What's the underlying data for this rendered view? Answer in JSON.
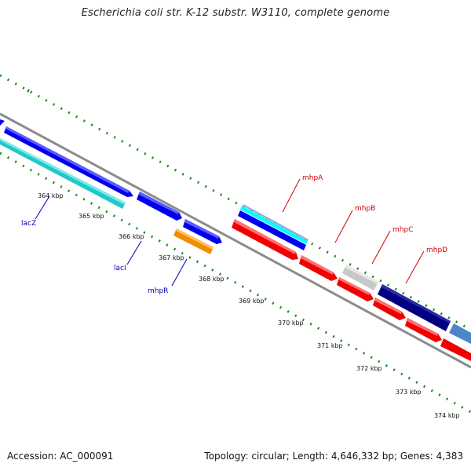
{
  "title": "Escherichia coli str. K-12 substr. W3110, complete genome",
  "footer": {
    "accession": "Accession: AC_000091",
    "stats": "Topology: circular; Length: 4,646,332 bp; Genes: 4,383"
  },
  "colors": {
    "backbone": "#8c8c8c",
    "tick": "#1a8a1a",
    "forward_label": "#d40000",
    "reverse_label": "#0000b0"
  },
  "ticks": [
    "364 kbp",
    "365 kbp",
    "366 kbp",
    "367 kbp",
    "368 kbp",
    "369 kbp",
    "370 kbp",
    "371 kbp",
    "372 kbp",
    "373 kbp",
    "374 kbp"
  ],
  "labels": {
    "forward": [
      "mhpA",
      "mhpB",
      "mhpC",
      "mhpD"
    ],
    "reverse": [
      "lacZ",
      "lacI",
      "mhpR"
    ]
  }
}
